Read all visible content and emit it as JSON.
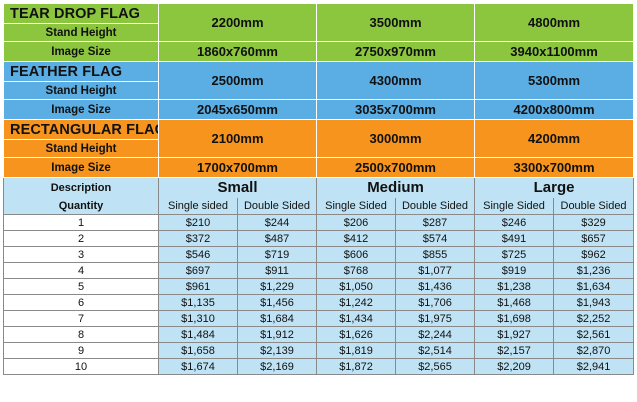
{
  "flags": {
    "teardrop": {
      "title": "TEAR DROP FLAG",
      "stand_label": "Stand Height",
      "image_label": "Image Size",
      "heights": [
        "2200mm",
        "3500mm",
        "4800mm"
      ],
      "sizes": [
        "1860x760mm",
        "2750x970mm",
        "3940x1100mm"
      ]
    },
    "feather": {
      "title": "FEATHER FLAG",
      "stand_label": "Stand Height",
      "image_label": "Image Size",
      "heights": [
        "2500mm",
        "4300mm",
        "5300mm"
      ],
      "sizes": [
        "2045x650mm",
        "3035x700mm",
        "4200x800mm"
      ]
    },
    "rectangular": {
      "title": "RECTANGULAR FLAG",
      "stand_label": "Stand Height",
      "image_label": "Image Size",
      "heights": [
        "2100mm",
        "3000mm",
        "4200mm"
      ],
      "sizes": [
        "1700x700mm",
        "2500x700mm",
        "3300x700mm"
      ]
    }
  },
  "pricing": {
    "desc_label": "Description",
    "qty_label": "Quantity",
    "sizes": [
      "Small",
      "Medium",
      "Large"
    ],
    "sides": [
      "Single sided",
      "Double Sided",
      "Single Sided",
      "Double Sided",
      "Single Sided",
      "Double Sided"
    ],
    "rows": [
      [
        "1",
        "$210",
        "$244",
        "$206",
        "$287",
        "$246",
        "$329"
      ],
      [
        "2",
        "$372",
        "$487",
        "$412",
        "$574",
        "$491",
        "$657"
      ],
      [
        "3",
        "$546",
        "$719",
        "$606",
        "$855",
        "$725",
        "$962"
      ],
      [
        "4",
        "$697",
        "$911",
        "$768",
        "$1,077",
        "$919",
        "$1,236"
      ],
      [
        "5",
        "$961",
        "$1,229",
        "$1,050",
        "$1,436",
        "$1,238",
        "$1,634"
      ],
      [
        "6",
        "$1,135",
        "$1,456",
        "$1,242",
        "$1,706",
        "$1,468",
        "$1,943"
      ],
      [
        "7",
        "$1,310",
        "$1,684",
        "$1,434",
        "$1,975",
        "$1,698",
        "$2,252"
      ],
      [
        "8",
        "$1,484",
        "$1,912",
        "$1,626",
        "$2,244",
        "$1,927",
        "$2,561"
      ],
      [
        "9",
        "$1,658",
        "$2,139",
        "$1,819",
        "$2,514",
        "$2,157",
        "$2,870"
      ],
      [
        "10",
        "$1,674",
        "$2,169",
        "$1,872",
        "$2,565",
        "$2,209",
        "$2,941"
      ]
    ]
  },
  "colors": {
    "teardrop": "#8cc63f",
    "feather": "#5aaee3",
    "rectangular": "#f7941d",
    "price_cell": "#bfe3f5"
  }
}
